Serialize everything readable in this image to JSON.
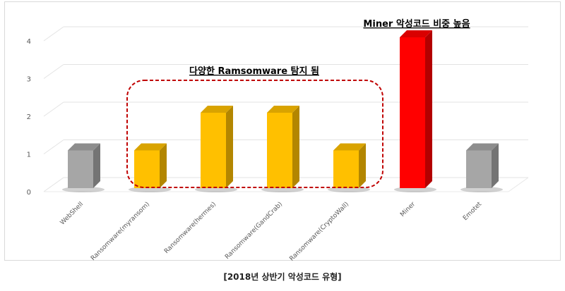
{
  "chart_data": {
    "type": "bar",
    "categories": [
      "WebShell",
      "Ransomware(myransom)",
      "Ransomware(hermes)",
      "Ransomware(GandCrab)",
      "Ransomware(CryptoWall)",
      "Miner",
      "Emotet"
    ],
    "values": [
      1,
      1,
      2,
      2,
      1,
      4,
      1
    ],
    "colors": [
      "#a6a6a6",
      "#ffc000",
      "#ffc000",
      "#ffc000",
      "#ffc000",
      "#ff0000",
      "#a6a6a6"
    ],
    "yticks": [
      0,
      1,
      2,
      3,
      4
    ],
    "ylim": [
      0,
      4
    ],
    "grid": true,
    "annotations": {
      "ransomware_note": "다양한 Ramsomware 탐지 됨",
      "miner_note": "Miner 악성코드 비중 높음"
    }
  },
  "caption": "[2018년 상반기 악성코드 유형]"
}
